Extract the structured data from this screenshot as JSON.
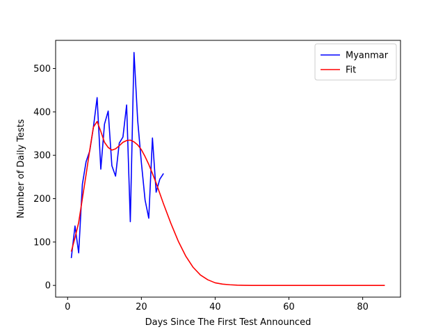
{
  "chart_data": {
    "type": "line",
    "title": "",
    "xlabel": "Days Since The First Test Announced",
    "ylabel": "Number of Daily Tests",
    "xlim": [
      -3.25,
      90.25
    ],
    "ylim": [
      -27,
      565
    ],
    "xticks": [
      0,
      20,
      40,
      60,
      80
    ],
    "yticks": [
      0,
      100,
      200,
      300,
      400,
      500
    ],
    "grid": false,
    "legend_position": "top-right",
    "series": [
      {
        "name": "Myanmar",
        "color": "#0000ff",
        "x": [
          1,
          2,
          3,
          4,
          5,
          6,
          7,
          8,
          9,
          10,
          11,
          12,
          13,
          14,
          15,
          16,
          17,
          18,
          19,
          20,
          21,
          22,
          23,
          24,
          25,
          26
        ],
        "y": [
          63,
          137,
          75,
          233,
          285,
          310,
          365,
          433,
          268,
          372,
          402,
          276,
          252,
          328,
          342,
          416,
          147,
          537,
          380,
          283,
          197,
          155,
          340,
          215,
          245,
          258
        ]
      },
      {
        "name": "Fit",
        "color": "#ff0000",
        "x": [
          1,
          2,
          3,
          4,
          5,
          6,
          7,
          8,
          9,
          10,
          11,
          12,
          13,
          14,
          15,
          16,
          17,
          18,
          19,
          20,
          21,
          22,
          23,
          24,
          25,
          26,
          28,
          30,
          32,
          34,
          36,
          38,
          40,
          42,
          44,
          46,
          48,
          50,
          52,
          55,
          60,
          65,
          70,
          75,
          80,
          86
        ],
        "y": [
          78,
          110,
          145,
          200,
          255,
          312,
          365,
          378,
          355,
          330,
          318,
          312,
          315,
          322,
          330,
          334,
          335,
          331,
          324,
          313,
          297,
          279,
          258,
          236,
          212,
          188,
          143,
          102,
          68,
          42,
          24,
          13,
          6,
          3,
          1.5,
          0.6,
          0.2,
          0,
          0,
          0,
          0,
          0,
          0,
          0,
          0,
          0
        ]
      }
    ]
  }
}
